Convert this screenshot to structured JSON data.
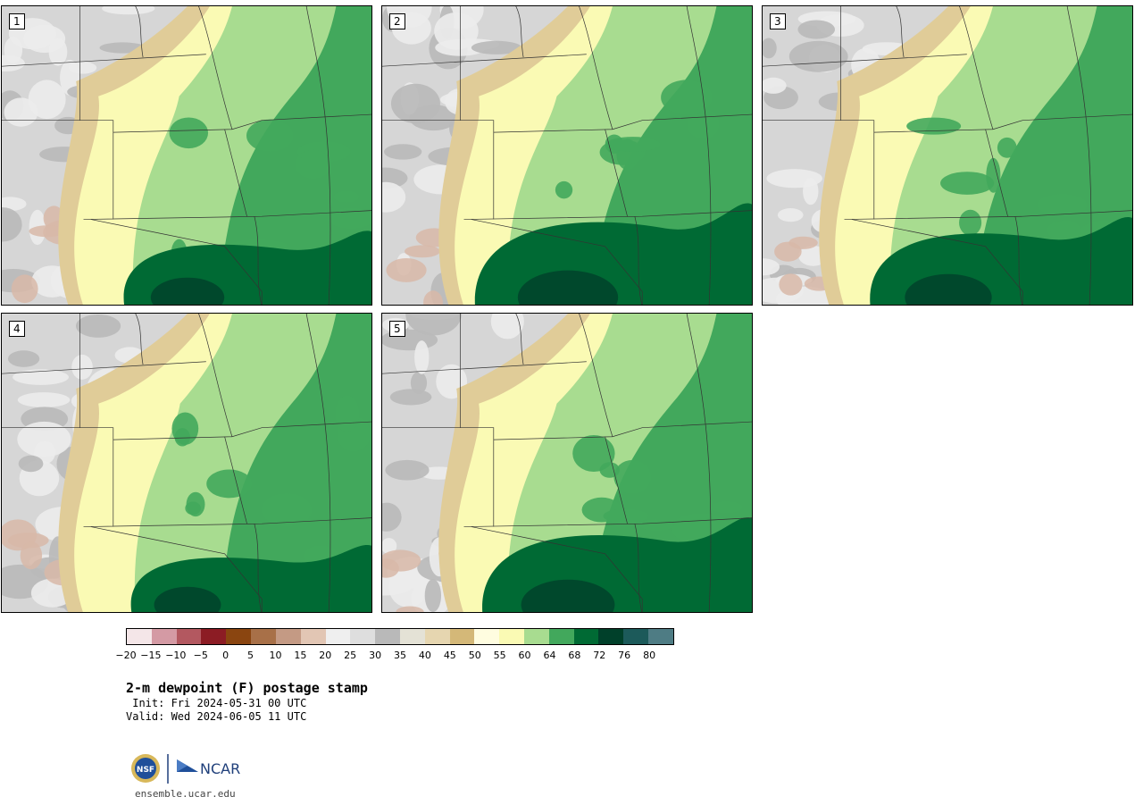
{
  "panels": [
    {
      "label": "1",
      "wet": 0.45,
      "gulf": 0.55
    },
    {
      "label": "2",
      "wet": 0.6,
      "gulf": 0.75
    },
    {
      "label": "3",
      "wet": 0.55,
      "gulf": 0.65
    },
    {
      "label": "4",
      "wet": 0.4,
      "gulf": 0.5
    },
    {
      "label": "5",
      "wet": 0.6,
      "gulf": 0.7
    }
  ],
  "colorbar": {
    "colors": [
      "#f4e6e8",
      "#d49aa4",
      "#b35860",
      "#8c1c24",
      "#8a4510",
      "#a87048",
      "#c49a84",
      "#e2c6b4",
      "#efefef",
      "#dedede",
      "#b9b9b9",
      "#e4e2d6",
      "#e6d6b0",
      "#d4b878",
      "#fffde0",
      "#fafab4",
      "#a8dc90",
      "#42a85c",
      "#006a34",
      "#00402a",
      "#1c5a5a",
      "#4e7c84"
    ],
    "ticks": [
      "−20",
      "−15",
      "−10",
      "−5",
      "0",
      "5",
      "10",
      "15",
      "20",
      "25",
      "30",
      "35",
      "40",
      "45",
      "50",
      "55",
      "60",
      "64",
      "68",
      "72",
      "76",
      "80"
    ]
  },
  "title": "2-m dewpoint (F) postage stamp",
  "init": " Init: Fri 2024-05-31 00 UTC",
  "valid": "Valid: Wed 2024-06-05 11 UTC",
  "logo": {
    "nsf": "NSF",
    "ncar": "NCAR"
  },
  "url": "ensemble.ucar.edu"
}
